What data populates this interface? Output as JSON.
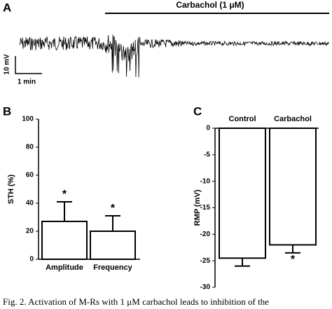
{
  "panel_a": {
    "label": "A",
    "annotation": "Carbachol (1 μM)",
    "scale_y": "10 mV",
    "scale_x": "1 min"
  },
  "chart_data": [
    {
      "type": "bar",
      "label": "B",
      "y_label": "STH (%)",
      "categories": [
        "Amplitude",
        "Frequency"
      ],
      "values": [
        27,
        20
      ],
      "errors": [
        14,
        11
      ],
      "significance": [
        "*",
        "*"
      ],
      "color": "#ffffff",
      "ylim": [
        0,
        100
      ],
      "yticks": [
        0,
        20,
        40,
        60,
        80,
        100
      ]
    },
    {
      "type": "bar",
      "label": "C",
      "y_label": "RMP (mV)",
      "categories": [
        "Control",
        "Carbachol"
      ],
      "values": [
        -24.5,
        -22
      ],
      "errors": [
        1.5,
        1.5
      ],
      "significance": [
        null,
        "*"
      ],
      "color": "#ffffff",
      "ylim": [
        -30,
        0
      ],
      "yticks": [
        -30,
        -25,
        -20,
        -15,
        -10,
        -5,
        0
      ]
    }
  ],
  "caption": "Fig. 2.  Activation of M-Rs with 1 μM carbachol leads to inhibition of the"
}
